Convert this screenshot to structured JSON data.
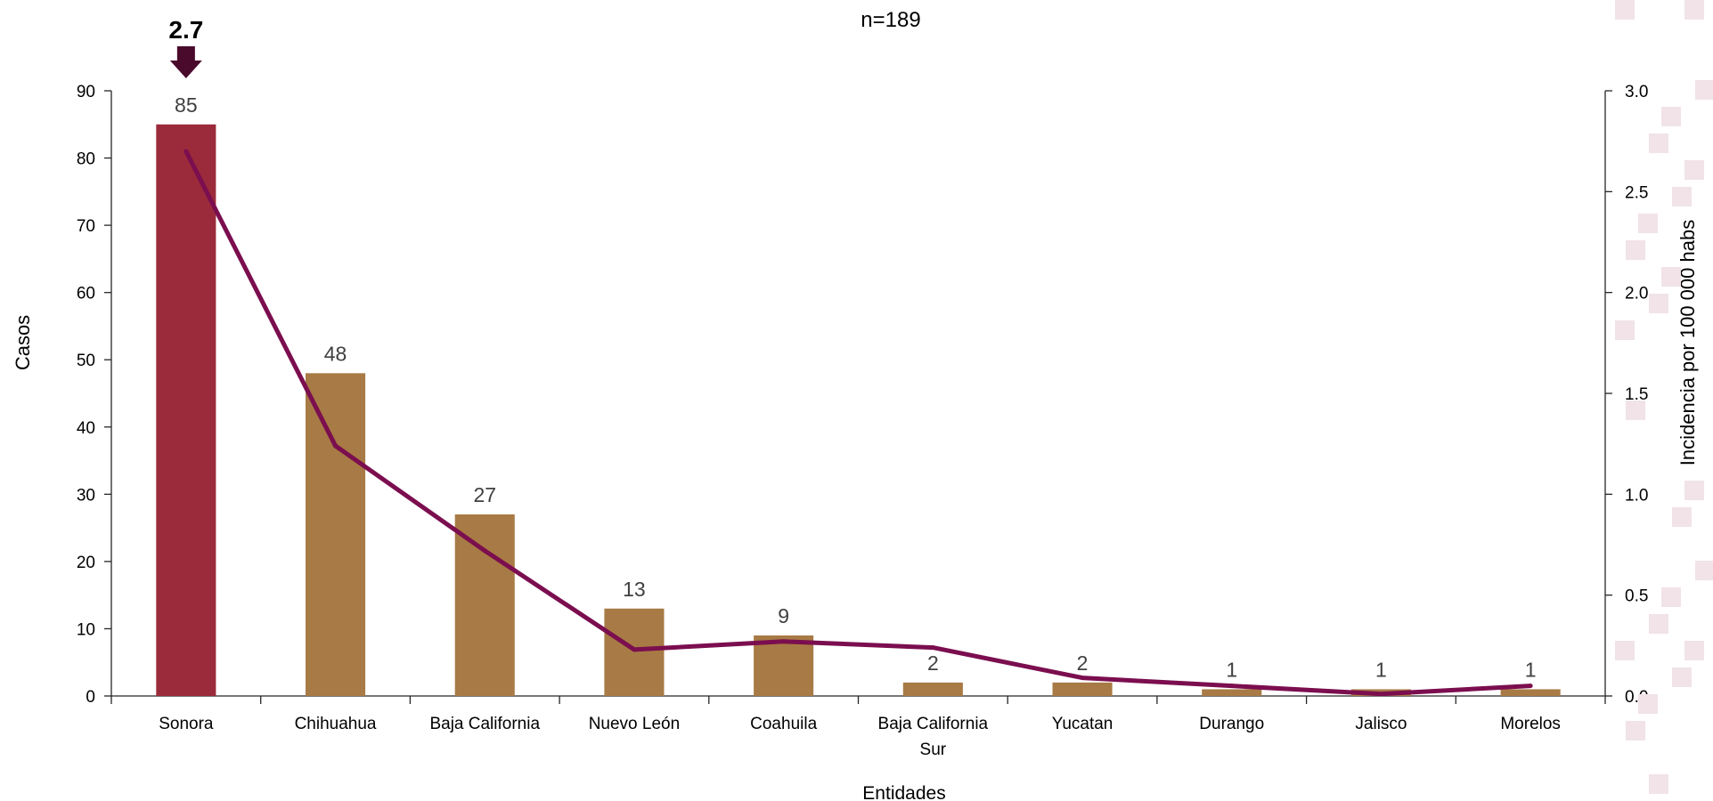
{
  "chart_data": {
    "type": "bar",
    "title": "n=189",
    "xlabel": "Entidades",
    "ylabel": "Casos",
    "y2label": "Incidencia por 100 000 habs",
    "categories": [
      "Sonora",
      "Chihuahua",
      "Baja California",
      "Nuevo León",
      "Coahuila",
      "Baja California Sur",
      "Yucatan",
      "Durango",
      "Jalisco",
      "Morelos"
    ],
    "series": [
      {
        "type": "bar",
        "axis": "left",
        "values": [
          85,
          48,
          27,
          13,
          9,
          2,
          2,
          1,
          1,
          1
        ],
        "data_labels": [
          "85",
          "48",
          "27",
          "13",
          "9",
          "2",
          "2",
          "1",
          "1",
          "1"
        ]
      },
      {
        "type": "line",
        "axis": "right",
        "values": [
          2.7,
          1.24,
          0.72,
          0.23,
          0.27,
          0.24,
          0.09,
          0.05,
          0.01,
          0.05
        ]
      }
    ],
    "ylim": [
      0,
      90
    ],
    "yticks": [
      "0",
      "10",
      "20",
      "30",
      "40",
      "50",
      "60",
      "70",
      "80",
      "90"
    ],
    "y2lim": [
      0,
      3.0
    ],
    "y2ticks": [
      "0.0",
      "0.5",
      "1.0",
      "1.5",
      "2.0",
      "2.5",
      "3.0"
    ],
    "highlight": {
      "category": "Sonora",
      "label": "2.7"
    },
    "grid": false,
    "colors": {
      "bar": "#A87A45",
      "bar_highlight": "#9B2B3B",
      "line": "#7B0E4F",
      "arrow": "#4A0A2C",
      "text": "#404040",
      "axis": "#262626"
    }
  }
}
